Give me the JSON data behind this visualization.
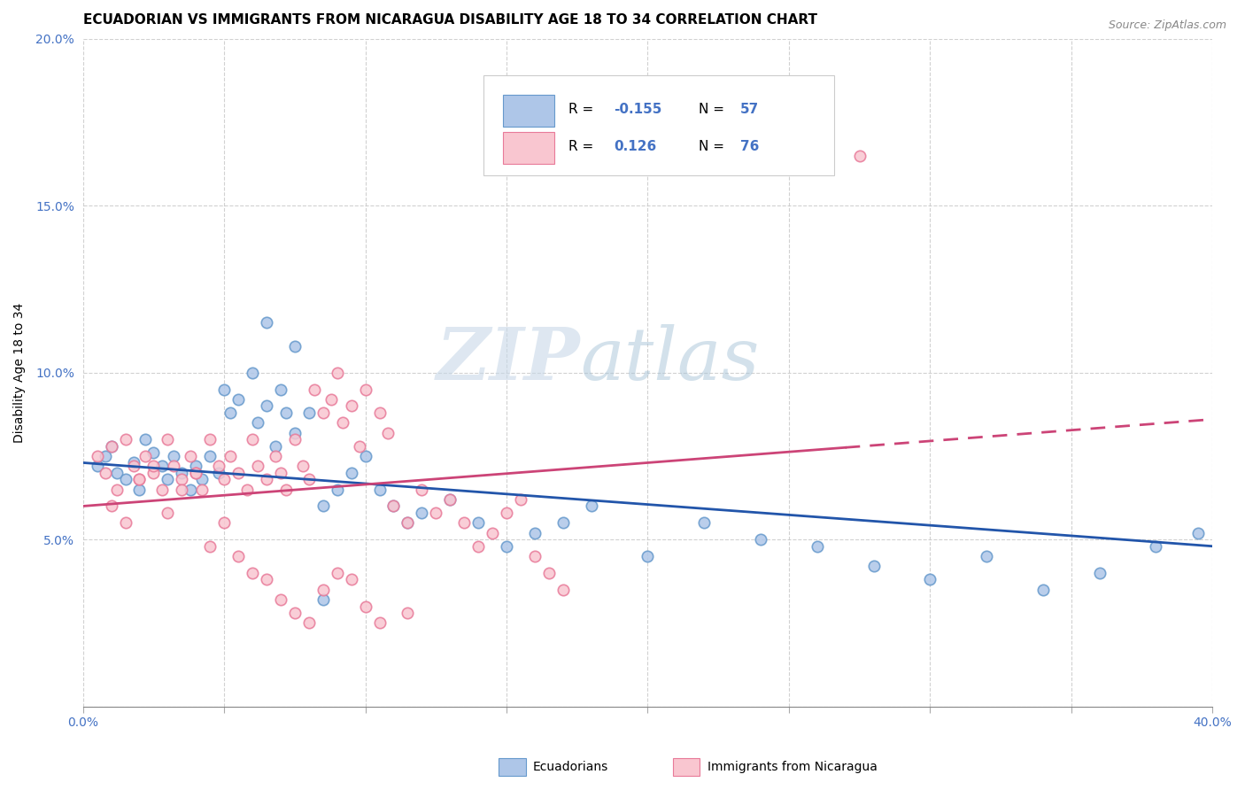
{
  "title": "ECUADORIAN VS IMMIGRANTS FROM NICARAGUA DISABILITY AGE 18 TO 34 CORRELATION CHART",
  "source": "Source: ZipAtlas.com",
  "ylabel": "Disability Age 18 to 34",
  "xlim": [
    0.0,
    0.4
  ],
  "ylim": [
    0.0,
    0.2
  ],
  "blue_color": "#aec6e8",
  "blue_edge_color": "#6699cc",
  "pink_color": "#f9c6d0",
  "pink_edge_color": "#e87a99",
  "blue_line_color": "#2255aa",
  "pink_line_color": "#cc4477",
  "watermark_zip": "ZIP",
  "watermark_atlas": "atlas",
  "background_color": "#ffffff",
  "title_fontsize": 11,
  "axis_label_fontsize": 10,
  "tick_fontsize": 10,
  "tick_color": "#4472c4",
  "legend_label_color": "#4472c4",
  "source_text": "Source: ZipAtlas.com",
  "blue_line_y0": 0.073,
  "blue_line_y1": 0.048,
  "pink_line_y0": 0.06,
  "pink_line_y1": 0.086,
  "blue_scatter_x": [
    0.005,
    0.008,
    0.01,
    0.012,
    0.015,
    0.018,
    0.02,
    0.022,
    0.025,
    0.028,
    0.03,
    0.032,
    0.035,
    0.038,
    0.04,
    0.042,
    0.045,
    0.048,
    0.05,
    0.052,
    0.055,
    0.06,
    0.062,
    0.065,
    0.068,
    0.07,
    0.072,
    0.075,
    0.08,
    0.085,
    0.09,
    0.095,
    0.1,
    0.105,
    0.11,
    0.115,
    0.12,
    0.13,
    0.14,
    0.15,
    0.16,
    0.17,
    0.18,
    0.2,
    0.22,
    0.24,
    0.26,
    0.28,
    0.3,
    0.32,
    0.34,
    0.36,
    0.38,
    0.395,
    0.065,
    0.075,
    0.085
  ],
  "blue_scatter_y": [
    0.072,
    0.075,
    0.078,
    0.07,
    0.068,
    0.073,
    0.065,
    0.08,
    0.076,
    0.072,
    0.068,
    0.075,
    0.07,
    0.065,
    0.072,
    0.068,
    0.075,
    0.07,
    0.095,
    0.088,
    0.092,
    0.1,
    0.085,
    0.09,
    0.078,
    0.095,
    0.088,
    0.082,
    0.088,
    0.06,
    0.065,
    0.07,
    0.075,
    0.065,
    0.06,
    0.055,
    0.058,
    0.062,
    0.055,
    0.048,
    0.052,
    0.055,
    0.06,
    0.045,
    0.055,
    0.05,
    0.048,
    0.042,
    0.038,
    0.045,
    0.035,
    0.04,
    0.048,
    0.052,
    0.115,
    0.108,
    0.032
  ],
  "pink_scatter_x": [
    0.005,
    0.008,
    0.01,
    0.012,
    0.015,
    0.018,
    0.02,
    0.022,
    0.025,
    0.028,
    0.03,
    0.032,
    0.035,
    0.038,
    0.04,
    0.042,
    0.045,
    0.048,
    0.05,
    0.052,
    0.055,
    0.058,
    0.06,
    0.062,
    0.065,
    0.068,
    0.07,
    0.072,
    0.075,
    0.078,
    0.08,
    0.082,
    0.085,
    0.088,
    0.09,
    0.092,
    0.095,
    0.098,
    0.1,
    0.105,
    0.108,
    0.11,
    0.115,
    0.12,
    0.125,
    0.13,
    0.135,
    0.14,
    0.145,
    0.15,
    0.155,
    0.16,
    0.165,
    0.17,
    0.01,
    0.015,
    0.02,
    0.025,
    0.03,
    0.035,
    0.04,
    0.045,
    0.05,
    0.055,
    0.06,
    0.065,
    0.07,
    0.075,
    0.08,
    0.085,
    0.09,
    0.095,
    0.1,
    0.105,
    0.115,
    0.275
  ],
  "pink_scatter_y": [
    0.075,
    0.07,
    0.078,
    0.065,
    0.08,
    0.072,
    0.068,
    0.075,
    0.07,
    0.065,
    0.08,
    0.072,
    0.068,
    0.075,
    0.07,
    0.065,
    0.08,
    0.072,
    0.068,
    0.075,
    0.07,
    0.065,
    0.08,
    0.072,
    0.068,
    0.075,
    0.07,
    0.065,
    0.08,
    0.072,
    0.068,
    0.095,
    0.088,
    0.092,
    0.1,
    0.085,
    0.09,
    0.078,
    0.095,
    0.088,
    0.082,
    0.06,
    0.055,
    0.065,
    0.058,
    0.062,
    0.055,
    0.048,
    0.052,
    0.058,
    0.062,
    0.045,
    0.04,
    0.035,
    0.06,
    0.055,
    0.068,
    0.072,
    0.058,
    0.065,
    0.07,
    0.048,
    0.055,
    0.045,
    0.04,
    0.038,
    0.032,
    0.028,
    0.025,
    0.035,
    0.04,
    0.038,
    0.03,
    0.025,
    0.028,
    0.165
  ]
}
